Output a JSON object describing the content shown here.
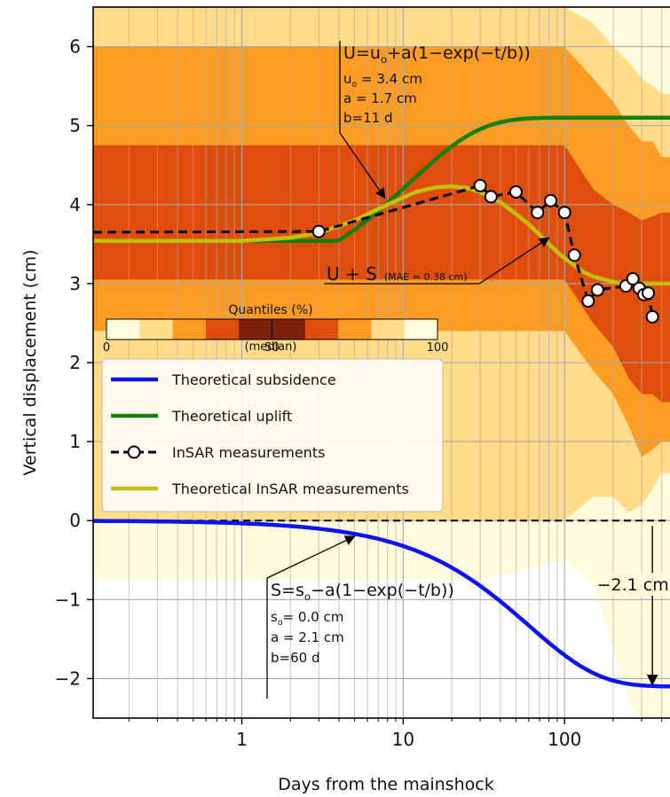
{
  "chart_data": {
    "type": "line",
    "xlabel": "Days from the mainshock",
    "ylabel": "Vertical displacement (cm)",
    "xscale": "log",
    "xlim": [
      0.12,
      450
    ],
    "ylim": [
      -2.5,
      6.5
    ],
    "grid": true,
    "x_ticks": [
      {
        "value": 1,
        "label": "1"
      },
      {
        "value": 10,
        "label": "10"
      },
      {
        "value": 100,
        "label": "100"
      }
    ],
    "y_ticks": [
      {
        "value": -2,
        "label": "−2"
      },
      {
        "value": -1,
        "label": "−1"
      },
      {
        "value": 0,
        "label": "0"
      },
      {
        "value": 1,
        "label": "1"
      },
      {
        "value": 2,
        "label": "2"
      },
      {
        "value": 3,
        "label": "3"
      },
      {
        "value": 4,
        "label": "4"
      },
      {
        "value": 5,
        "label": "5"
      },
      {
        "value": 6,
        "label": "6"
      }
    ],
    "quantile_bands": {
      "x": [
        0.12,
        1,
        3,
        10,
        30,
        60,
        100,
        150,
        200,
        250,
        300,
        350,
        400,
        450
      ],
      "colors": [
        "#fffbdc",
        "#ffdb8a",
        "#fc9c22",
        "#df4d0d"
      ],
      "bands": [
        {
          "lo": [
            -0.75,
            -0.75,
            -0.75,
            -0.75,
            -0.75,
            -0.6,
            -0.5,
            -0.8,
            -1.6,
            -2.3,
            -2.5,
            -2.5,
            -2.5,
            -2.5
          ],
          "hi": [
            6.5,
            6.5,
            6.5,
            6.5,
            6.5,
            6.5,
            6.5,
            6.5,
            6.5,
            6.5,
            6.5,
            6.5,
            6.5,
            6.5
          ]
        },
        {
          "lo": [
            0.0,
            0.0,
            0.0,
            0.0,
            0.0,
            0.0,
            0.0,
            0.3,
            0.3,
            0.1,
            0.2,
            0.4,
            0.6,
            0.6
          ],
          "hi": [
            6.5,
            6.5,
            6.5,
            6.5,
            6.5,
            6.5,
            6.5,
            6.3,
            6.0,
            5.8,
            5.6,
            5.5,
            5.4,
            5.4
          ]
        },
        {
          "lo": [
            2.4,
            2.4,
            2.4,
            2.4,
            2.4,
            2.4,
            2.4,
            1.9,
            1.6,
            1.2,
            0.8,
            0.9,
            1.0,
            1.0
          ],
          "hi": [
            6.0,
            6.0,
            6.0,
            6.0,
            6.0,
            6.0,
            6.0,
            5.6,
            5.3,
            5.0,
            4.8,
            4.8,
            4.6,
            4.6
          ]
        },
        {
          "lo": [
            3.05,
            3.05,
            3.05,
            3.05,
            3.05,
            3.05,
            3.05,
            2.5,
            2.2,
            1.8,
            1.6,
            1.6,
            1.5,
            1.5
          ],
          "hi": [
            4.75,
            4.75,
            4.75,
            4.75,
            4.75,
            4.75,
            4.75,
            4.2,
            4.0,
            3.9,
            3.8,
            3.85,
            3.9,
            3.9
          ]
        }
      ]
    },
    "series": [
      {
        "name": "Theoretical subsidence",
        "color": "#0a14f5",
        "model": "subsidence",
        "s0": 0.0,
        "a": 2.1,
        "b": 60
      },
      {
        "name": "Theoretical uplift",
        "color": "#10800f",
        "model": "uplift",
        "u0": 3.4,
        "a": 1.7,
        "b": 11
      },
      {
        "name": "InSAR measurements",
        "color": "#000000",
        "style": "dashed-markers",
        "x": [
          0.12,
          3,
          30,
          35,
          50,
          68,
          82,
          100,
          115,
          140,
          160,
          240,
          265,
          290,
          310,
          330,
          350
        ],
        "y": [
          3.65,
          3.66,
          4.24,
          4.1,
          4.16,
          3.9,
          4.05,
          3.9,
          3.36,
          2.78,
          2.92,
          2.97,
          3.06,
          2.94,
          2.86,
          2.88,
          2.58
        ]
      },
      {
        "name": "Theoretical InSAR measurements",
        "color": "#c2c00c",
        "x": [
          0.12,
          1,
          2,
          3,
          5,
          8,
          12,
          16,
          20,
          25,
          30,
          40,
          50,
          60,
          70,
          80,
          90,
          100,
          110,
          130,
          150,
          200,
          250,
          300,
          350,
          400,
          450
        ],
        "y": [
          3.54,
          3.54,
          3.58,
          3.64,
          3.8,
          4.0,
          4.16,
          4.22,
          4.23,
          4.21,
          4.16,
          4.03,
          3.88,
          3.75,
          3.62,
          3.5,
          3.4,
          3.32,
          3.26,
          3.15,
          3.09,
          3.02,
          3.0,
          3.0,
          3.0,
          3.0,
          3.0
        ]
      }
    ],
    "legend": {
      "placement": "middle-left",
      "entries": [
        "Theoretical subsidence",
        "Theoretical uplift",
        "InSAR measurements",
        "Theoretical InSAR measurements"
      ]
    },
    "colorbar": {
      "title": "Quantiles (%)",
      "ticks": [
        "0",
        "50",
        "100"
      ],
      "sublabel": "(median)",
      "colors": [
        "#fffbdc",
        "#ffdb8a",
        "#fc9c22",
        "#df4d0d",
        "#7d210a",
        "#7d210a",
        "#df4d0d",
        "#fc9c22",
        "#ffdb8a",
        "#fffbdc"
      ]
    },
    "annotations": {
      "uplift": {
        "formula": "U=uₒ+a(1−exp(−t/b))",
        "params": [
          "uₒ = 3.4 cm",
          "a = 1.7 cm",
          "b=11 d"
        ],
        "arrow_to": {
          "x": 8,
          "y": 4.05
        }
      },
      "insar": {
        "main": "U + S",
        "small": "(MAE = 0.38 cm)",
        "arrow_to": {
          "x": 80,
          "y": 3.58
        }
      },
      "subsidence": {
        "formula": "S=sₒ−a(1−exp(−t/b))",
        "params": [
          "sₒ= 0.0 cm",
          "a = 2.1 cm",
          "b=60 d"
        ],
        "arrow_to": {
          "x": 5,
          "y": -0.2
        }
      },
      "delta": {
        "label": "−2.1 cm",
        "x": 350,
        "from": 0,
        "to": -2.1
      }
    }
  }
}
